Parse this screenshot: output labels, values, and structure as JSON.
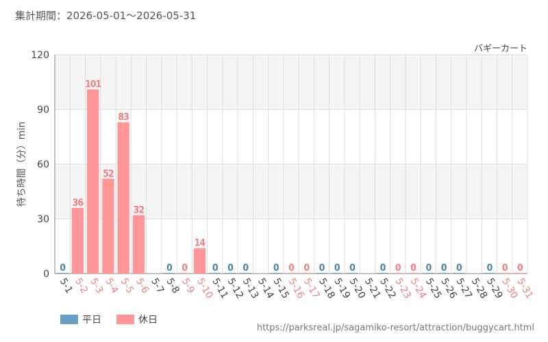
{
  "header": {
    "period": "集計期間：2026-05-01～2026-05-31",
    "attraction": "バギーカート"
  },
  "legend": {
    "weekday": "平日",
    "holiday": "休日"
  },
  "source": "https://parksreal.jp/sagamiko-resort/attraction/buggycart.html",
  "colors": {
    "weekday": "#6a9ec5",
    "holiday": "#ff9698",
    "weekday_label": "#4a82b0",
    "holiday_label": "#f07f82",
    "axis_text": "#444444",
    "grid": "#dddddd",
    "band": "#f5f5f5"
  },
  "chart_data": {
    "type": "bar",
    "ylabel": "待ち時間（分）min",
    "ylim": [
      0,
      120
    ],
    "yticks": [
      0,
      30,
      60,
      90,
      120
    ],
    "grid": true,
    "legend_position": "bottom-left",
    "categories": [
      "5-1",
      "5-2",
      "5-3",
      "5-4",
      "5-5",
      "5-6",
      "5-7",
      "5-8",
      "5-9",
      "5-10",
      "5-11",
      "5-12",
      "5-13",
      "5-14",
      "5-15",
      "5-16",
      "5-17",
      "5-18",
      "5-19",
      "5-20",
      "5-21",
      "5-22",
      "5-23",
      "5-24",
      "5-25",
      "5-26",
      "5-27",
      "5-28",
      "5-29",
      "5-30",
      "5-31"
    ],
    "values": [
      0,
      36,
      101,
      52,
      83,
      32,
      null,
      0,
      0,
      14,
      0,
      0,
      0,
      null,
      0,
      0,
      0,
      0,
      0,
      0,
      null,
      0,
      0,
      0,
      0,
      0,
      0,
      null,
      0,
      0,
      0
    ],
    "day_type": [
      "weekday",
      "holiday",
      "holiday",
      "holiday",
      "holiday",
      "holiday",
      "weekday",
      "weekday",
      "holiday",
      "holiday",
      "weekday",
      "weekday",
      "weekday",
      "weekday",
      "weekday",
      "holiday",
      "holiday",
      "weekday",
      "weekday",
      "weekday",
      "weekday",
      "weekday",
      "holiday",
      "holiday",
      "weekday",
      "weekday",
      "weekday",
      "weekday",
      "weekday",
      "holiday",
      "holiday"
    ]
  }
}
